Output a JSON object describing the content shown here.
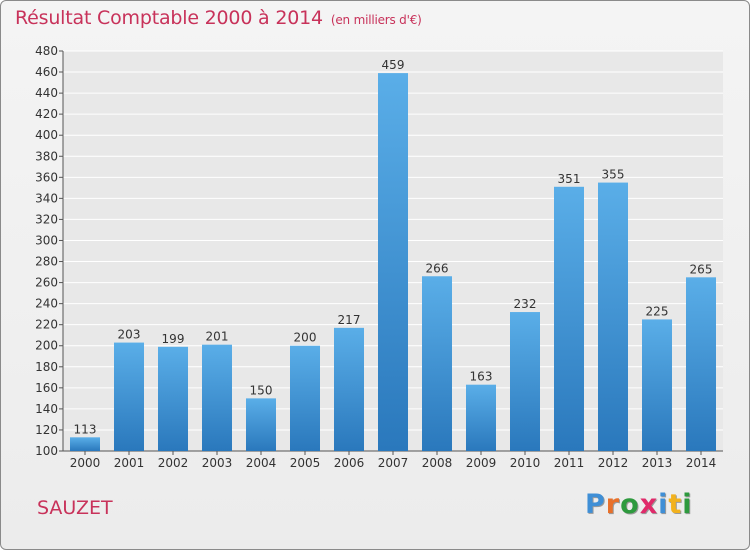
{
  "title": "Résultat Comptable 2000 à 2014",
  "subtitle": "(en milliers d'€)",
  "commune": "SAUZET",
  "logo": {
    "letters": [
      "P",
      "r",
      "o",
      "x",
      "i",
      "t",
      "i"
    ],
    "colors": [
      "#3f8fd6",
      "#e8702a",
      "#2e9a3e",
      "#e02a6a",
      "#3f8fd6",
      "#f2b21e",
      "#2e9a3e"
    ]
  },
  "colors": {
    "bar_top": "#5aaee8",
    "bar_bottom": "#2a78bc",
    "title": "#c8325a",
    "grid": "#ffffff"
  },
  "chart_data": {
    "type": "bar",
    "categories": [
      "2000",
      "2001",
      "2002",
      "2003",
      "2004",
      "2005",
      "2006",
      "2007",
      "2008",
      "2009",
      "2010",
      "2011",
      "2012",
      "2013",
      "2014"
    ],
    "values": [
      113,
      203,
      199,
      201,
      150,
      200,
      217,
      459,
      266,
      163,
      232,
      351,
      355,
      225,
      265
    ],
    "ylim": [
      100,
      480
    ],
    "yticks": [
      100,
      120,
      140,
      160,
      180,
      200,
      220,
      240,
      260,
      280,
      300,
      320,
      340,
      360,
      380,
      400,
      420,
      440,
      460,
      480
    ],
    "grid": true,
    "data_labels": true
  }
}
